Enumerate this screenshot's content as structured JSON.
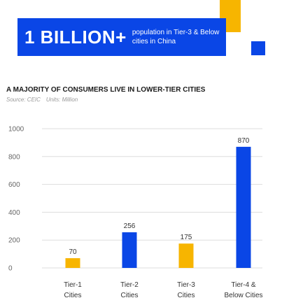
{
  "banner": {
    "headline": "1 BILLION+",
    "caption": "population in Tier-3 & Below cities in China",
    "color": "#0a46e6"
  },
  "colors": {
    "yellow": "#f7b500",
    "blue": "#0a46e6"
  },
  "chart_data": {
    "type": "bar",
    "title": "A MAJORITY OF CONSUMERS LIVE IN LOWER-TIER CITIES",
    "source": "Source: CEIC",
    "units": "Units: Million",
    "categories": [
      [
        "Tier-1",
        "Cities"
      ],
      [
        "Tier-2",
        "Cities"
      ],
      [
        "Tier-3",
        "Cities"
      ],
      [
        "Tier-4 &",
        "Below Cities"
      ]
    ],
    "values": [
      70,
      256,
      175,
      870
    ],
    "bar_colors": [
      "#f7b500",
      "#0a46e6",
      "#f7b500",
      "#0a46e6"
    ],
    "ylim": [
      0,
      1000
    ],
    "yticks": [
      0,
      200,
      400,
      600,
      800,
      1000
    ],
    "grid": true,
    "xlabel": "",
    "ylabel": ""
  }
}
